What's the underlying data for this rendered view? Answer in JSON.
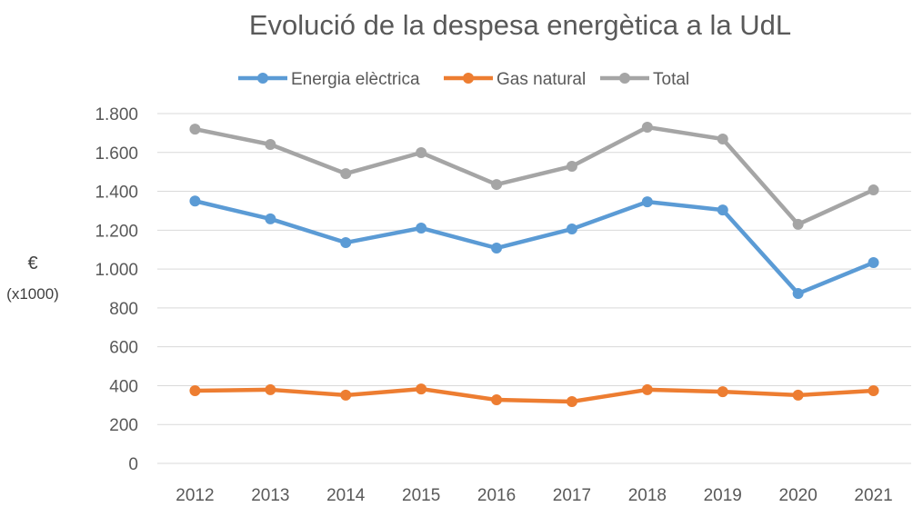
{
  "chart_data": {
    "type": "line",
    "title": "Evolució de la despesa energètica a la UdL",
    "ylabel": "€",
    "ylabel_unit": "(x1000)",
    "xlabel": "",
    "categories": [
      "2012",
      "2013",
      "2014",
      "2015",
      "2016",
      "2017",
      "2018",
      "2019",
      "2020",
      "2021"
    ],
    "ylim": [
      0,
      1800
    ],
    "yticks": [
      0,
      200,
      400,
      600,
      800,
      1000,
      1200,
      1400,
      1600,
      1800
    ],
    "ytick_labels": [
      "0",
      "200",
      "400",
      "600",
      "800",
      "1.000",
      "1.200",
      "1.400",
      "1.600",
      "1.800"
    ],
    "grid": true,
    "legend_position": "top",
    "series": [
      {
        "name": "Energia elèctrica",
        "color": "#5b9bd5",
        "values": [
          1350,
          1258,
          1136,
          1211,
          1108,
          1206,
          1346,
          1304,
          874,
          1033
        ]
      },
      {
        "name": "Gas natural",
        "color": "#ed7d31",
        "values": [
          374,
          379,
          351,
          383,
          327,
          318,
          379,
          369,
          351,
          374
        ]
      },
      {
        "name": "Total",
        "color": "#a5a5a5",
        "values": [
          1720,
          1641,
          1491,
          1599,
          1435,
          1529,
          1730,
          1669,
          1230,
          1407
        ]
      }
    ]
  }
}
